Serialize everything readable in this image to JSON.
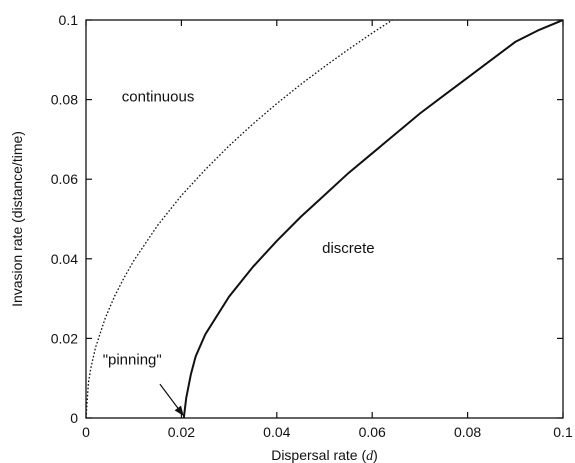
{
  "chart_data": {
    "type": "line",
    "xlabel": "Dispersal rate (d)",
    "xlabel_parts": {
      "main": "Dispersal rate (",
      "var": "d",
      "close": ")"
    },
    "ylabel": "Invasion rate (distance/time)",
    "xlim": [
      0,
      0.1
    ],
    "ylim": [
      0,
      0.1
    ],
    "x_ticks": [
      "0",
      "0.02",
      "0.04",
      "0.06",
      "0.08",
      "0.1"
    ],
    "y_ticks": [
      "0",
      "0.02",
      "0.04",
      "0.06",
      "0.08",
      "0.1"
    ],
    "grid": false,
    "series": [
      {
        "name": "continuous",
        "style": "dotted",
        "color": "#111111",
        "x": [
          0,
          0.0005,
          0.001,
          0.002,
          0.004,
          0.006,
          0.008,
          0.01,
          0.015,
          0.02,
          0.025,
          0.03,
          0.035,
          0.04,
          0.045,
          0.05,
          0.055,
          0.06,
          0.065,
          0.07,
          0.0725
        ],
        "y": [
          0,
          0.0088,
          0.0125,
          0.0177,
          0.025,
          0.0306,
          0.0353,
          0.0395,
          0.0484,
          0.0559,
          0.0624,
          0.0684,
          0.0739,
          0.079,
          0.0838,
          0.0883,
          0.0926,
          0.0967,
          0.1006,
          0.1044,
          0.1
        ]
      },
      {
        "name": "discrete",
        "style": "solid",
        "color": "#111111",
        "x": [
          0.0205,
          0.021,
          0.022,
          0.023,
          0.025,
          0.03,
          0.035,
          0.04,
          0.045,
          0.05,
          0.055,
          0.06,
          0.065,
          0.07,
          0.075,
          0.08,
          0.085,
          0.09,
          0.095,
          0.1
        ],
        "y": [
          0,
          0.005,
          0.011,
          0.0155,
          0.021,
          0.0305,
          0.038,
          0.0445,
          0.0505,
          0.056,
          0.0615,
          0.0665,
          0.0715,
          0.0765,
          0.081,
          0.0855,
          0.09,
          0.0945,
          0.0975,
          0.1
        ]
      }
    ],
    "annotations": [
      {
        "text": "continuous",
        "x": 0.0075,
        "y": 0.0795
      },
      {
        "text": "discrete",
        "x": 0.0495,
        "y": 0.0415
      },
      {
        "text": "\"pinning\"",
        "x": 0.0035,
        "y": 0.0135,
        "arrow_to": [
          0.0205,
          0.0005
        ],
        "arrow_from": [
          0.0155,
          0.0085
        ]
      }
    ]
  }
}
